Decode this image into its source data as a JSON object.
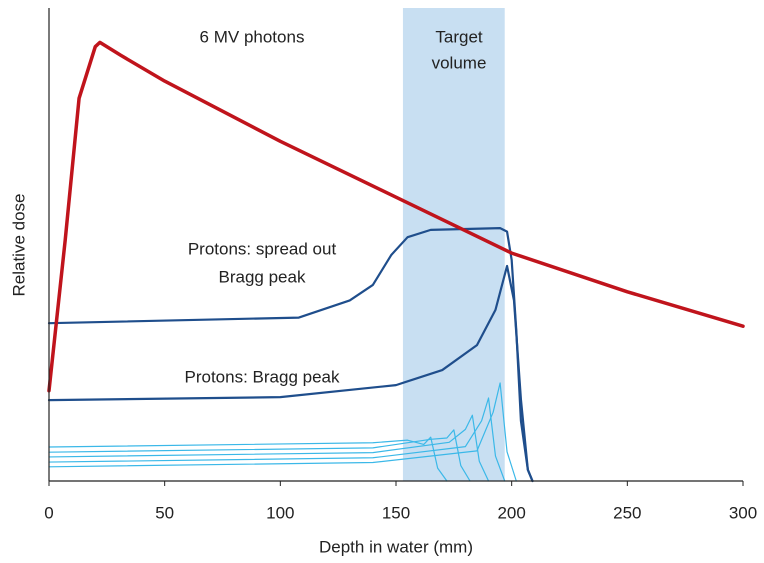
{
  "chart_data": {
    "type": "line",
    "x_label": "Depth in water (mm)",
    "y_label": "Relative dose",
    "xlim": [
      0,
      300
    ],
    "xticks": [
      0,
      50,
      100,
      150,
      200,
      250,
      300
    ],
    "ylim": [
      0,
      1.1
    ],
    "target_region": [
      153,
      197
    ],
    "target_label": [
      "Target",
      "volume"
    ],
    "annotations": [
      "6 MV photons",
      "Protons: spread out",
      "Bragg peak",
      "Protons: Bragg peak"
    ],
    "series": [
      {
        "color": "#c0141c",
        "width": 3.5,
        "x": [
          0,
          7,
          13,
          20,
          22,
          31,
          50,
          100,
          150,
          200,
          250,
          300
        ],
        "values": [
          0.21,
          0.56,
          0.89,
          1.01,
          1.02,
          0.99,
          0.93,
          0.79,
          0.66,
          0.53,
          0.44,
          0.36
        ]
      },
      {
        "color": "#1f4e8c",
        "width": 2.2,
        "x": [
          0,
          108,
          130,
          140,
          148,
          155,
          165,
          195,
          198,
          200,
          202,
          204,
          207,
          209
        ],
        "values": [
          0.367,
          0.38,
          0.42,
          0.456,
          0.526,
          0.567,
          0.584,
          0.588,
          0.58,
          0.514,
          0.35,
          0.14,
          0.026,
          0
        ]
      },
      {
        "color": "#1f4e8c",
        "width": 2.2,
        "x": [
          0,
          100,
          150,
          170,
          185,
          193,
          198,
          201,
          204,
          207,
          209
        ],
        "values": [
          0.188,
          0.195,
          0.223,
          0.258,
          0.316,
          0.398,
          0.5,
          0.42,
          0.19,
          0.026,
          0
        ]
      },
      {
        "color": "#3bb8e8",
        "width": 1.2,
        "x": [
          0,
          140,
          155,
          162,
          165,
          168,
          172
        ],
        "values": [
          0.079,
          0.089,
          0.095,
          0.085,
          0.102,
          0.03,
          0
        ]
      },
      {
        "color": "#3bb8e8",
        "width": 1.2,
        "x": [
          0,
          140,
          165,
          172,
          175,
          178,
          182
        ],
        "values": [
          0.067,
          0.077,
          0.097,
          0.1,
          0.119,
          0.036,
          0
        ]
      },
      {
        "color": "#3bb8e8",
        "width": 1.2,
        "x": [
          0,
          140,
          173,
          180,
          183,
          186,
          190
        ],
        "values": [
          0.056,
          0.066,
          0.09,
          0.12,
          0.153,
          0.046,
          0
        ]
      },
      {
        "color": "#3bb8e8",
        "width": 1.2,
        "x": [
          0,
          140,
          180,
          187,
          190,
          193,
          197
        ],
        "values": [
          0.044,
          0.054,
          0.08,
          0.14,
          0.193,
          0.058,
          0
        ]
      },
      {
        "color": "#3bb8e8",
        "width": 1.2,
        "x": [
          0,
          140,
          185,
          192,
          195,
          198,
          202
        ],
        "values": [
          0.033,
          0.043,
          0.07,
          0.16,
          0.228,
          0.068,
          0
        ]
      }
    ]
  }
}
